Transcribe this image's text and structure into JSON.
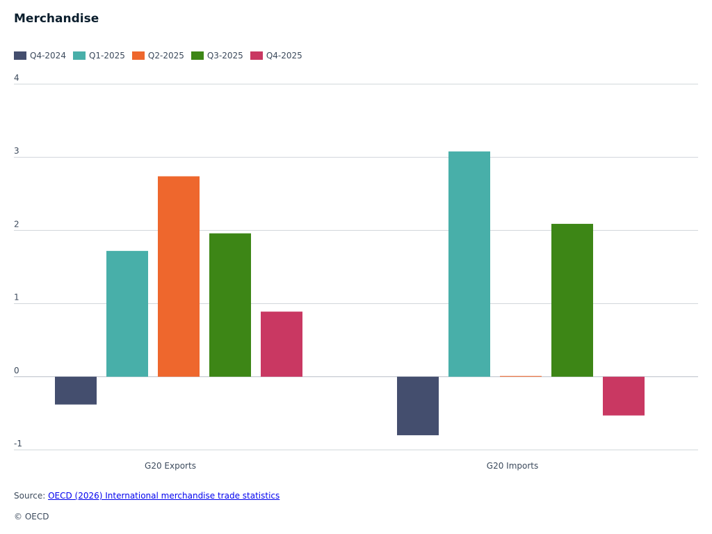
{
  "chart_data": {
    "type": "bar",
    "title": "Merchandise",
    "categories": [
      "G20 Exports",
      "G20 Imports"
    ],
    "series": [
      {
        "name": "Q4-2024",
        "color": "#444e6e",
        "values": [
          -0.38,
          -0.8
        ]
      },
      {
        "name": "Q1-2025",
        "color": "#48afa9",
        "values": [
          1.72,
          3.08
        ]
      },
      {
        "name": "Q2-2025",
        "color": "#ee672d",
        "values": [
          2.74,
          0.01
        ]
      },
      {
        "name": "Q3-2025",
        "color": "#3d8616",
        "values": [
          1.96,
          2.09
        ]
      },
      {
        "name": "Q4-2025",
        "color": "#c93862",
        "values": [
          0.89,
          -0.53
        ]
      }
    ],
    "ylim": [
      -1,
      4
    ],
    "yticks": [
      "4",
      "3",
      "2",
      "1",
      "0",
      "-1"
    ],
    "xlabel": "",
    "ylabel": "",
    "legend": "top-left",
    "grid": true
  },
  "source": {
    "prefix": "Source: ",
    "link_text": "OECD (2026) International merchandise trade statistics"
  },
  "copyright": "© OECD"
}
